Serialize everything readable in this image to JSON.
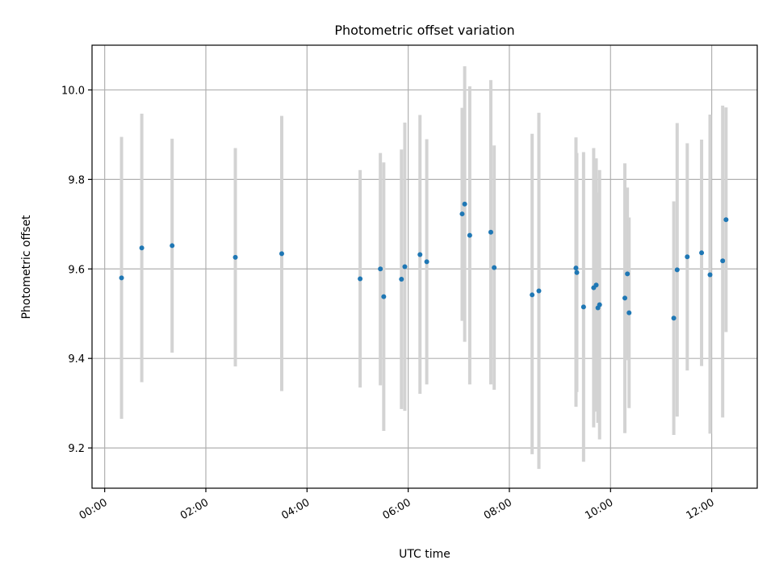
{
  "chart_data": {
    "type": "scatter",
    "title": "Photometric offset variation",
    "xlabel": "UTC time",
    "ylabel": "Photometric offset",
    "xlim": [
      "-00:15",
      "12:54"
    ],
    "ylim": [
      9.11,
      10.1
    ],
    "grid": true,
    "x_ticks": [
      "00:00",
      "02:00",
      "04:00",
      "06:00",
      "08:00",
      "10:00",
      "12:00"
    ],
    "y_ticks": [
      "9.2",
      "9.4",
      "9.6",
      "9.8",
      "10.0"
    ],
    "colors": {
      "point": "#1f77b4",
      "errorbar": "#d3d3d3",
      "grid": "#b0b0b0"
    },
    "points": [
      {
        "x": "00:20",
        "y": 9.58,
        "ylo": 9.265,
        "yhi": 9.895
      },
      {
        "x": "00:44",
        "y": 9.647,
        "ylo": 9.347,
        "yhi": 9.947
      },
      {
        "x": "01:20",
        "y": 9.652,
        "ylo": 9.413,
        "yhi": 9.891
      },
      {
        "x": "02:35",
        "y": 9.626,
        "ylo": 9.382,
        "yhi": 9.87
      },
      {
        "x": "03:30",
        "y": 9.634,
        "ylo": 9.327,
        "yhi": 9.942
      },
      {
        "x": "05:03",
        "y": 9.578,
        "ylo": 9.335,
        "yhi": 9.821
      },
      {
        "x": "05:27",
        "y": 9.6,
        "ylo": 9.34,
        "yhi": 9.859
      },
      {
        "x": "05:31",
        "y": 9.538,
        "ylo": 9.238,
        "yhi": 9.838
      },
      {
        "x": "05:52",
        "y": 9.577,
        "ylo": 9.287,
        "yhi": 9.867
      },
      {
        "x": "05:56",
        "y": 9.605,
        "ylo": 9.283,
        "yhi": 9.927
      },
      {
        "x": "06:14",
        "y": 9.632,
        "ylo": 9.321,
        "yhi": 9.944
      },
      {
        "x": "06:22",
        "y": 9.616,
        "ylo": 9.342,
        "yhi": 9.89
      },
      {
        "x": "07:04",
        "y": 9.723,
        "ylo": 9.484,
        "yhi": 9.96
      },
      {
        "x": "07:07",
        "y": 9.745,
        "ylo": 9.437,
        "yhi": 10.053
      },
      {
        "x": "07:13",
        "y": 9.675,
        "ylo": 9.342,
        "yhi": 10.008
      },
      {
        "x": "07:38",
        "y": 9.682,
        "ylo": 9.342,
        "yhi": 10.022
      },
      {
        "x": "07:42",
        "y": 9.603,
        "ylo": 9.33,
        "yhi": 9.876
      },
      {
        "x": "08:27",
        "y": 9.542,
        "ylo": 9.186,
        "yhi": 9.902
      },
      {
        "x": "08:35",
        "y": 9.551,
        "ylo": 9.153,
        "yhi": 9.949
      },
      {
        "x": "09:19",
        "y": 9.602,
        "ylo": 9.292,
        "yhi": 9.894
      },
      {
        "x": "09:20",
        "y": 9.592,
        "ylo": 9.325,
        "yhi": 9.859
      },
      {
        "x": "09:28",
        "y": 9.515,
        "ylo": 9.169,
        "yhi": 9.861
      },
      {
        "x": "09:40",
        "y": 9.558,
        "ylo": 9.246,
        "yhi": 9.87
      },
      {
        "x": "09:43",
        "y": 9.564,
        "ylo": 9.281,
        "yhi": 9.847
      },
      {
        "x": "09:45",
        "y": 9.513,
        "ylo": 9.256,
        "yhi": 9.771
      },
      {
        "x": "09:47",
        "y": 9.52,
        "ylo": 9.219,
        "yhi": 9.821
      },
      {
        "x": "10:17",
        "y": 9.535,
        "ylo": 9.233,
        "yhi": 9.836
      },
      {
        "x": "10:20",
        "y": 9.589,
        "ylo": 9.396,
        "yhi": 9.782
      },
      {
        "x": "10:22",
        "y": 9.502,
        "ylo": 9.289,
        "yhi": 9.715
      },
      {
        "x": "11:15",
        "y": 9.49,
        "ylo": 9.229,
        "yhi": 9.751
      },
      {
        "x": "11:19",
        "y": 9.598,
        "ylo": 9.27,
        "yhi": 9.926
      },
      {
        "x": "11:31",
        "y": 9.627,
        "ylo": 9.373,
        "yhi": 9.881
      },
      {
        "x": "11:48",
        "y": 9.636,
        "ylo": 9.383,
        "yhi": 9.889
      },
      {
        "x": "11:58",
        "y": 9.587,
        "ylo": 9.232,
        "yhi": 9.945
      },
      {
        "x": "12:13",
        "y": 9.618,
        "ylo": 9.268,
        "yhi": 9.965
      },
      {
        "x": "12:17",
        "y": 9.71,
        "ylo": 9.459,
        "yhi": 9.961
      }
    ]
  }
}
